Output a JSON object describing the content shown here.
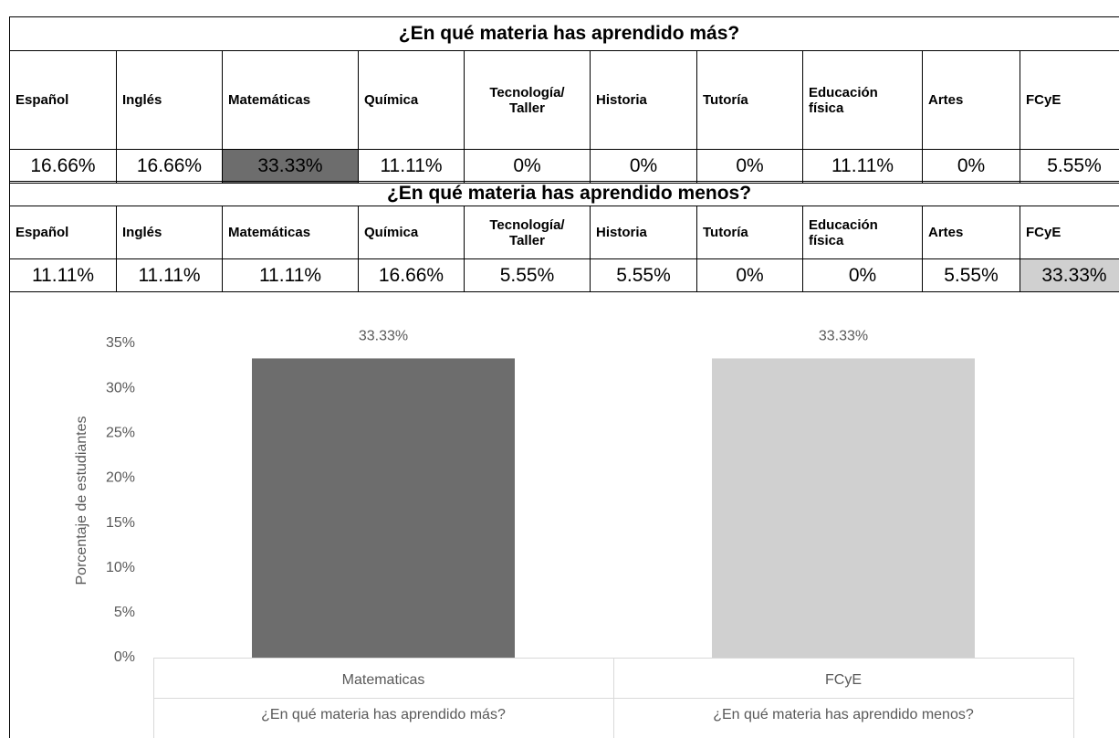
{
  "tables": [
    {
      "title": "¿En qué materia has aprendido más?",
      "headers": [
        "Español",
        "Inglés",
        "Matemáticas",
        "Química",
        "Tecnología/\nTaller",
        "Historia",
        "Tutoría",
        "Educación\nfísica",
        "Artes",
        "FCyE"
      ],
      "values": [
        "16.66%",
        "16.66%",
        "33.33%",
        "11.11%",
        "0%",
        "0%",
        "0%",
        "11.11%",
        "0%",
        "5.55%"
      ],
      "highlight": 2,
      "highlight_color": "#6d6d6d"
    },
    {
      "title": "¿En qué materia has aprendido menos?",
      "headers": [
        "Español",
        "Inglés",
        "Matemáticas",
        "Química",
        "Tecnología/\nTaller",
        "Historia",
        "Tutoría",
        "Educación\nfísica",
        "Artes",
        "FCyE"
      ],
      "values": [
        "11.11%",
        "11.11%",
        "11.11%",
        "16.66%",
        "5.55%",
        "5.55%",
        "0%",
        "0%",
        "5.55%",
        "33.33%"
      ],
      "highlight": 9,
      "highlight_color": "#d0d0d0"
    }
  ],
  "chart_data": {
    "type": "bar",
    "y_label": "Porcentaje de estudiantes",
    "categories": [
      "Matematicas",
      "FCyE"
    ],
    "groups": [
      "¿En qué materia has aprendido más?",
      "¿En qué materia has aprendido menos?"
    ],
    "values": [
      33.33,
      33.33
    ],
    "value_labels": [
      "33.33%",
      "33.33%"
    ],
    "colors": [
      "#6d6d6d",
      "#d0d0d0"
    ],
    "ylim": [
      0,
      35
    ],
    "yticks": [
      {
        "value": 0,
        "label": "0%"
      },
      {
        "value": 5,
        "label": "5%"
      },
      {
        "value": 10,
        "label": "10%"
      },
      {
        "value": 15,
        "label": "15%"
      },
      {
        "value": 20,
        "label": "20%"
      },
      {
        "value": 25,
        "label": "25%"
      },
      {
        "value": 30,
        "label": "30%"
      },
      {
        "value": 35,
        "label": "35%"
      }
    ]
  }
}
